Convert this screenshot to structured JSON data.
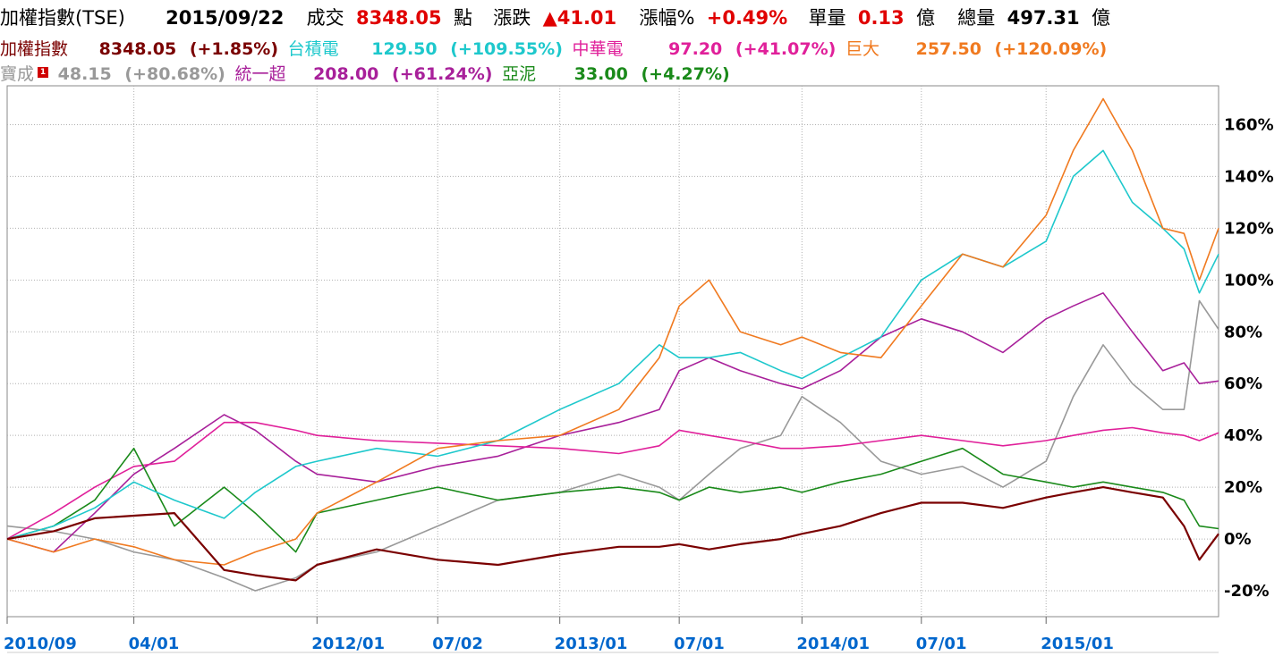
{
  "header": {
    "index_name": "加權指數(TSE)",
    "date": "2015/09/22",
    "deal_label": "成交",
    "deal_value": "8348.05",
    "points_label": "點",
    "change_label": "漲跌",
    "change_value": "▲41.01",
    "pct_label": "漲幅%",
    "pct_value": "+0.49%",
    "unit_vol_label": "單量",
    "unit_vol_value": "0.13",
    "unit_vol_unit": "億",
    "total_vol_label": "總量",
    "total_vol_value": "497.31",
    "total_vol_unit": "億"
  },
  "colors": {
    "加權指數": "#7a0000",
    "台積電": "#1ec8cc",
    "中華電": "#e0209a",
    "巨大": "#f07a20",
    "寶成": "#999999",
    "統一超": "#a8209a",
    "亞泥": "#1a8a1a",
    "deal": "#e00000",
    "text": "#000000",
    "axis_label": "#0066cc"
  },
  "legend": [
    {
      "name": "加權指數",
      "price": "8348.05",
      "pct": "(+1.85%)"
    },
    {
      "name": "台積電",
      "price": "129.50",
      "pct": "(+109.55%)"
    },
    {
      "name": "中華電",
      "price": "97.20",
      "pct": "(+41.07%)"
    },
    {
      "name": "巨大",
      "price": "257.50",
      "pct": "(+120.09%)"
    },
    {
      "name": "寶成",
      "price": "48.15",
      "pct": "(+80.68%)",
      "flag": "1"
    },
    {
      "name": "統一超",
      "price": "208.00",
      "pct": "(+61.24%)"
    },
    {
      "name": "亞泥",
      "price": "33.00",
      "pct": "(+4.27%)"
    }
  ],
  "chart_data": {
    "type": "line",
    "title": "",
    "xlabel": "",
    "ylabel": "",
    "ylim": [
      -30,
      175
    ],
    "yticks": [
      -20,
      0,
      20,
      40,
      60,
      80,
      100,
      120,
      140,
      160
    ],
    "ytick_labels": [
      "-20%",
      "0%",
      "20%",
      "40%",
      "60%",
      "80%",
      "100%",
      "120%",
      "140%",
      "160%"
    ],
    "x_tick_labels": [
      "2010/09",
      "04/01",
      "2012/01",
      "07/02",
      "2013/01",
      "07/01",
      "2014/01",
      "07/01",
      "2015/01"
    ],
    "x_tick_dates": [
      "2010-09-22",
      "2011-04-01",
      "2012-01-02",
      "2012-07-02",
      "2013-01-02",
      "2013-07-01",
      "2014-01-02",
      "2014-07-01",
      "2015-01-05"
    ],
    "grid": true,
    "legend_placement": "top",
    "x": [
      "2010-09-22",
      "2010-12-01",
      "2011-02-01",
      "2011-04-01",
      "2011-06-01",
      "2011-08-15",
      "2011-10-01",
      "2011-12-01",
      "2012-01-02",
      "2012-04-01",
      "2012-07-02",
      "2012-10-01",
      "2013-01-02",
      "2013-04-01",
      "2013-06-01",
      "2013-07-01",
      "2013-08-15",
      "2013-10-01",
      "2013-12-01",
      "2014-01-02",
      "2014-03-01",
      "2014-05-01",
      "2014-07-01",
      "2014-09-01",
      "2014-11-01",
      "2015-01-05",
      "2015-02-15",
      "2015-04-01",
      "2015-05-15",
      "2015-06-30",
      "2015-08-01",
      "2015-08-24",
      "2015-09-22"
    ],
    "series": [
      {
        "name": "加權指數",
        "values": [
          0,
          3,
          8,
          9,
          10,
          -12,
          -14,
          -16,
          -10,
          -4,
          -8,
          -10,
          -6,
          -3,
          -3,
          -2,
          -4,
          -2,
          0,
          2,
          5,
          10,
          14,
          14,
          12,
          16,
          18,
          20,
          18,
          16,
          5,
          -8,
          2
        ]
      },
      {
        "name": "台積電",
        "values": [
          0,
          5,
          12,
          22,
          15,
          8,
          18,
          28,
          30,
          35,
          32,
          38,
          50,
          60,
          75,
          70,
          70,
          72,
          65,
          62,
          70,
          78,
          100,
          110,
          105,
          115,
          140,
          150,
          130,
          120,
          112,
          95,
          110
        ]
      },
      {
        "name": "中華電",
        "values": [
          0,
          10,
          20,
          28,
          30,
          45,
          45,
          42,
          40,
          38,
          37,
          36,
          35,
          33,
          36,
          42,
          40,
          38,
          35,
          35,
          36,
          38,
          40,
          38,
          36,
          38,
          40,
          42,
          43,
          41,
          40,
          38,
          41
        ]
      },
      {
        "name": "巨大",
        "values": [
          0,
          -5,
          0,
          -3,
          -8,
          -10,
          -5,
          0,
          10,
          22,
          35,
          38,
          40,
          50,
          70,
          90,
          100,
          80,
          75,
          78,
          72,
          70,
          90,
          110,
          105,
          125,
          150,
          170,
          150,
          120,
          118,
          100,
          120
        ]
      },
      {
        "name": "寶成",
        "values": [
          5,
          3,
          0,
          -5,
          -8,
          -15,
          -20,
          -15,
          -10,
          -5,
          5,
          15,
          18,
          25,
          20,
          15,
          25,
          35,
          40,
          55,
          45,
          30,
          25,
          28,
          20,
          30,
          55,
          75,
          60,
          50,
          50,
          92,
          81
        ]
      },
      {
        "name": "統一超",
        "values": [
          0,
          -5,
          10,
          25,
          35,
          48,
          42,
          30,
          25,
          22,
          28,
          32,
          40,
          45,
          50,
          65,
          70,
          65,
          60,
          58,
          65,
          78,
          85,
          80,
          72,
          85,
          90,
          95,
          80,
          65,
          68,
          60,
          61
        ]
      },
      {
        "name": "亞泥",
        "values": [
          0,
          5,
          15,
          35,
          5,
          20,
          10,
          -5,
          10,
          15,
          20,
          15,
          18,
          20,
          18,
          15,
          20,
          18,
          20,
          18,
          22,
          25,
          30,
          35,
          25,
          22,
          20,
          22,
          20,
          18,
          15,
          5,
          4
        ]
      }
    ]
  }
}
